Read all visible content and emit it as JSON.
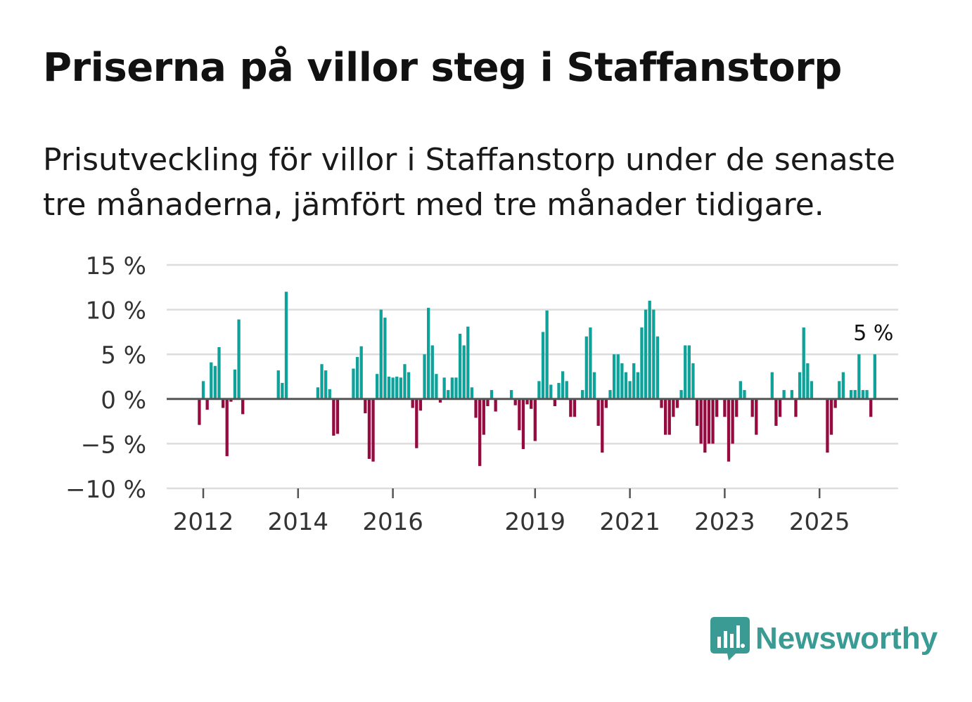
{
  "title": "Priserna på villor steg i Staffanstorp",
  "subtitle": "Prisutveckling för villor i Staffanstorp under de senaste tre månaderna, jämfört med tre månader tidigare.",
  "brand": {
    "name": "Newsworthy",
    "color": "#3a9a94",
    "icon": "bar-chart-speech-bubble-icon"
  },
  "colors": {
    "positive": "#0ea29a",
    "negative": "#950a3f",
    "grid": "#dddddd",
    "zero_line": "#555555",
    "axis_text": "#333333"
  },
  "chart_data": {
    "type": "bar",
    "title": "Priserna på villor steg i Staffanstorp",
    "xlabel": "",
    "ylabel": "",
    "ylim": [
      -10,
      15
    ],
    "yticks": [
      15,
      10,
      5,
      0,
      -5,
      -10
    ],
    "ytick_labels": [
      "15 %",
      "10 %",
      "5 %",
      "0 %",
      "−5 %",
      "−10 %"
    ],
    "xticks": [
      2012,
      2014,
      2016,
      2019,
      2021,
      2023,
      2025
    ],
    "x_start": 2011.917,
    "x_step": 0.08333,
    "values": [
      -2.9,
      2.0,
      -1.2,
      4.1,
      3.7,
      5.8,
      -1.0,
      -6.4,
      -0.3,
      3.3,
      8.9,
      -1.7,
      0,
      0,
      0,
      0,
      0,
      0,
      0,
      0,
      3.2,
      1.8,
      12.0,
      0,
      0,
      0,
      0,
      0,
      0,
      0,
      1.3,
      3.9,
      3.2,
      1.1,
      -4.1,
      -3.9,
      0,
      0,
      0,
      3.4,
      4.7,
      5.9,
      -1.6,
      -6.7,
      -7.0,
      2.8,
      10.0,
      9.1,
      2.5,
      2.4,
      2.5,
      2.4,
      3.9,
      3.0,
      -1.0,
      -5.5,
      -1.3,
      5.0,
      10.2,
      6.0,
      2.8,
      -0.4,
      2.4,
      1.0,
      2.4,
      2.4,
      7.3,
      6.0,
      8.1,
      1.3,
      -2.1,
      -7.5,
      -4.0,
      -0.8,
      1.0,
      -1.4,
      0.1,
      0,
      0,
      1.0,
      -0.7,
      -3.5,
      -5.6,
      -0.6,
      -1.1,
      -4.7,
      2.0,
      7.5,
      9.9,
      1.6,
      -0.8,
      1.8,
      3.1,
      2.0,
      -2.0,
      -2.0,
      0,
      1.0,
      7.0,
      8.0,
      3.0,
      -3.0,
      -6.0,
      -1.0,
      1.0,
      5.0,
      5.0,
      4.0,
      3.0,
      2.0,
      4.0,
      3.0,
      8.0,
      10.0,
      11.0,
      10.0,
      7.0,
      -1.0,
      -4.0,
      -4.0,
      -2.0,
      -1.0,
      1.0,
      6.0,
      6.0,
      4.0,
      -3.0,
      -5.0,
      -6.0,
      -5.0,
      -5.0,
      -2.0,
      0,
      -2.0,
      -7.0,
      -5.0,
      -2.0,
      2.0,
      1.0,
      0,
      -2.0,
      -4.0,
      0,
      0,
      0,
      3.0,
      -3.0,
      -2.0,
      1.0,
      0,
      1.0,
      -2.0,
      3.0,
      8.0,
      4.0,
      2.0,
      0,
      0,
      0,
      -6.0,
      -4.0,
      -1.0,
      2.0,
      3.0,
      0,
      1.0,
      1.0,
      5.0,
      1.0,
      1.0,
      -2.0,
      5.0
    ],
    "annotation": {
      "text": "5 %",
      "value": 5
    }
  }
}
